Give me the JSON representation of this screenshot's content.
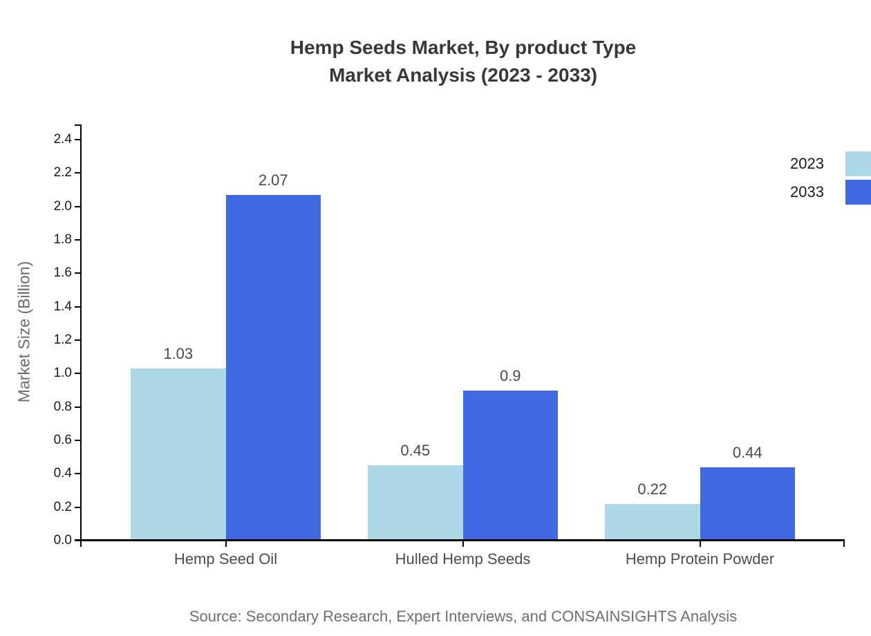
{
  "title": {
    "line1": "Hemp Seeds Market, By product Type",
    "line2": "Market Analysis (2023 - 2033)"
  },
  "source": "Source: Secondary Research, Expert Interviews, and CONSAINSIGHTS Analysis",
  "legend": {
    "entries": [
      {
        "label": "2023",
        "color": "#ADD8E6"
      },
      {
        "label": "2033",
        "color": "#4169E1"
      }
    ]
  },
  "chart_data": {
    "type": "bar",
    "title": "Hemp Seeds Market, By product Type Market Analysis (2023 - 2033)",
    "categories": [
      "Hemp Seed Oil",
      "Hulled Hemp Seeds",
      "Hemp Protein Powder"
    ],
    "series": [
      {
        "name": "2023",
        "color": "#ADD8E6",
        "values": [
          1.03,
          0.45,
          0.22
        ]
      },
      {
        "name": "2033",
        "color": "#4169E1",
        "values": [
          2.07,
          0.9,
          0.44
        ]
      }
    ],
    "xlabel": "",
    "ylabel": "Market Size (Billion)",
    "ylim": [
      0,
      2.4
    ],
    "ytick_step": 0.2,
    "grid": false,
    "value_labels": true,
    "legend_position": "top-right"
  }
}
